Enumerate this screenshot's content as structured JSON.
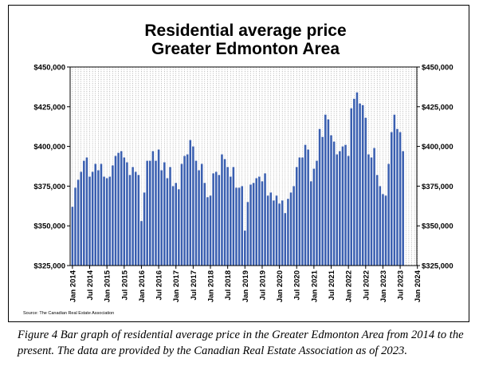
{
  "chart_data": {
    "type": "bar",
    "title_lines": [
      "Residential average price",
      "Greater Edmonton Area"
    ],
    "x_tick_labels": [
      "Jan 2014",
      "Jul 2014",
      "Jan 2015",
      "Jul 2015",
      "Jan 2016",
      "Jul 2016",
      "Jan 2017",
      "Jul 2017",
      "Jan 2018",
      "Jul 2018",
      "Jan 2019",
      "Jul 2019",
      "Jan 2020",
      "Jul 2020",
      "Jan 2021",
      "Jul 2021",
      "Jan 2022",
      "Jul 2022",
      "Jan 2023",
      "Jul 2023",
      "Jan 2024"
    ],
    "y_tick_labels": [
      "$450,000",
      "$425,000",
      "$400,000",
      "$375,000",
      "$350,000",
      "$325,000"
    ],
    "y_ticks": [
      450000,
      425000,
      400000,
      375000,
      350000,
      325000
    ],
    "ylim": [
      325000,
      450000
    ],
    "x_start": "Jan 2014",
    "frequency": "monthly",
    "grid": "vertical dotted",
    "bar_color": "#3a5fb0",
    "values": [
      362000,
      374000,
      379000,
      384000,
      391000,
      393000,
      381000,
      384000,
      389000,
      385000,
      389000,
      381000,
      380000,
      381000,
      388000,
      394000,
      396000,
      397000,
      393000,
      390000,
      382000,
      387000,
      384000,
      382000,
      353000,
      371000,
      391000,
      391000,
      397000,
      391000,
      398000,
      385000,
      390000,
      380000,
      387000,
      375000,
      377000,
      373000,
      389000,
      394000,
      395000,
      404000,
      400000,
      391000,
      385000,
      389000,
      377000,
      368000,
      369000,
      383000,
      384000,
      382000,
      395000,
      392000,
      387000,
      381000,
      387000,
      374000,
      374000,
      375000,
      347000,
      365000,
      376000,
      377000,
      380000,
      381000,
      378000,
      383000,
      369000,
      371000,
      366000,
      369000,
      364000,
      366000,
      358000,
      367000,
      371000,
      375000,
      387000,
      393000,
      393000,
      401000,
      398000,
      378000,
      386000,
      391000,
      411000,
      406000,
      420000,
      417000,
      407000,
      403000,
      395000,
      397000,
      400000,
      401000,
      394000,
      424000,
      430000,
      434000,
      427000,
      426000,
      418000,
      395000,
      393000,
      399000,
      382000,
      375000,
      370000,
      369000,
      389000,
      409000,
      420000,
      411000,
      409000,
      397000
    ],
    "source": "Source: The Canadian Real Estate Association"
  },
  "caption": "Figure 4 Bar graph of residential average price in the Greater Edmonton Area from 2014 to the present. The data are provided by the Canadian Real Estate Association as of 2023."
}
